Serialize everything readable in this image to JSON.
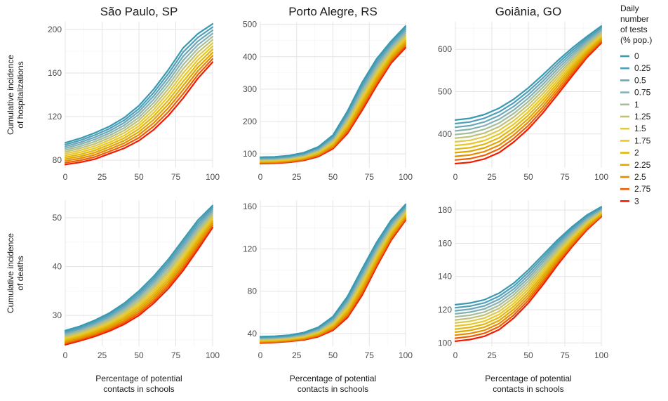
{
  "chart_data": {
    "type": "line",
    "x": [
      0,
      10,
      20,
      30,
      40,
      50,
      60,
      70,
      80,
      90,
      100
    ],
    "xlim": [
      0,
      100
    ],
    "xticks": [
      0,
      25,
      50,
      75,
      100
    ],
    "columns": [
      "São Paulo, SP",
      "Porto Alegre, RS",
      "Goiânia, GO"
    ],
    "row_labels": [
      "Cumulative incidence\nof hospitalizations",
      "Cumulative incidence\nof deaths"
    ],
    "xlabel": "Percentage of potential\ncontacts in schools",
    "legend": {
      "title": "Daily\nnumber\nof tests\n(% pop.)",
      "position": "right",
      "entries": [
        "0",
        "0.25",
        "0.5",
        "0.75",
        "1",
        "1.25",
        "1.5",
        "1.75",
        "2",
        "2.25",
        "2.5",
        "2.75",
        "3"
      ],
      "colors": [
        "#3A9AB2",
        "#4FA0B7",
        "#6AA7B8",
        "#85B1B5",
        "#A5BE9A",
        "#BFC07A",
        "#DDCA4A",
        "#E9C825",
        "#E3B710",
        "#E2A600",
        "#E88A00",
        "#EE5E00",
        "#F11B00"
      ]
    },
    "panels": [
      {
        "row": 0,
        "col": 0,
        "ylim": [
          73,
          207
        ],
        "yticks": [
          80,
          120,
          160,
          200
        ],
        "series": [
          {
            "name": "0",
            "values": [
              96,
              100,
              105,
              111,
              119,
              130,
              145,
              163,
              183,
              196,
              205
            ]
          },
          {
            "name": "3",
            "values": [
              76,
              78,
              81,
              86,
              91,
              98,
              108,
              121,
              137,
              155,
              170
            ]
          }
        ]
      },
      {
        "row": 0,
        "col": 1,
        "ylim": [
          57,
          508
        ],
        "yticks": [
          100,
          200,
          300,
          400,
          500
        ],
        "series": [
          {
            "name": "0",
            "values": [
              90,
              91,
              95,
              104,
              122,
              158,
              232,
              320,
              393,
              448,
              495
            ]
          },
          {
            "name": "3",
            "values": [
              70,
              71,
              74,
              80,
              92,
              116,
              163,
              234,
              310,
              380,
              428
            ]
          }
        ]
      },
      {
        "row": 0,
        "col": 2,
        "ylim": [
          320,
          665
        ],
        "yticks": [
          400,
          500,
          600
        ],
        "series": [
          {
            "name": "0",
            "values": [
              433,
              437,
              446,
              461,
              482,
              509,
              540,
              573,
              603,
              630,
              655
            ]
          },
          {
            "name": "3",
            "values": [
              330,
              333,
              341,
              356,
              381,
              412,
              450,
              493,
              537,
              580,
              615
            ]
          }
        ]
      },
      {
        "row": 1,
        "col": 0,
        "ylim": [
          23.7,
          53.6
        ],
        "yticks": [
          30,
          40,
          50
        ],
        "series": [
          {
            "name": "0",
            "values": [
              26.9,
              27.8,
              29.0,
              30.5,
              32.5,
              35.0,
              38.0,
              41.5,
              45.5,
              49.5,
              52.5
            ]
          },
          {
            "name": "3",
            "values": [
              24.0,
              24.8,
              25.7,
              26.8,
              28.2,
              30.0,
              32.5,
              35.5,
              39.2,
              43.5,
              48.0
            ]
          }
        ]
      },
      {
        "row": 1,
        "col": 1,
        "ylim": [
          28,
          166
        ],
        "yticks": [
          40,
          80,
          120,
          160
        ],
        "series": [
          {
            "name": "0",
            "values": [
              37,
              37.5,
              38.5,
              41,
              46,
              56,
              75,
              101,
              126,
              147,
              162
            ]
          },
          {
            "name": "3",
            "values": [
              31,
              31.5,
              32.5,
              34,
              37,
              43,
              55,
              76,
              103,
              128,
              147
            ]
          }
        ]
      },
      {
        "row": 1,
        "col": 2,
        "ylim": [
          98,
          186
        ],
        "yticks": [
          100,
          120,
          140,
          160,
          180
        ],
        "series": [
          {
            "name": "0",
            "values": [
              123,
              124,
              126,
              130,
              136,
              144,
              153,
              162,
              170,
              177,
              182
            ]
          },
          {
            "name": "3",
            "values": [
              101,
              102,
              104,
              108,
              115,
              124,
              135,
              147,
              158,
              168,
              176
            ]
          }
        ]
      }
    ]
  }
}
